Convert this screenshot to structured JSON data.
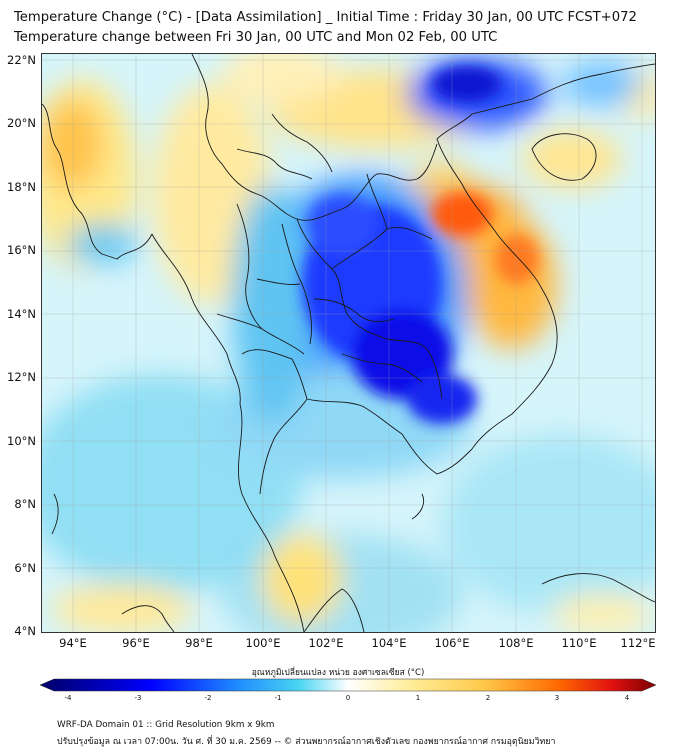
{
  "title_line1": "Temperature Change (°C) - [Data Assimilation] _ Initial Time : Friday 30 Jan, 00 UTC FCST+072",
  "title_line2": "Temperature change between Fri 30 Jan, 00 UTC and Mon 02 Feb, 00 UTC",
  "lat_labels": [
    "22°N",
    "20°N",
    "18°N",
    "16°N",
    "14°N",
    "12°N",
    "10°N",
    "8°N",
    "6°N",
    "4°N"
  ],
  "lon_labels": [
    "94°E",
    "96°E",
    "98°E",
    "100°E",
    "102°E",
    "104°E",
    "106°E",
    "108°E",
    "110°E",
    "112°E"
  ],
  "map_extent": {
    "lon_min": 93.0,
    "lon_max": 112.4,
    "lat_min": 4.0,
    "lat_max": 22.2
  },
  "gridlines": true,
  "colorbar": {
    "title": "อุณหภูมิเปลี่ยนแปลง หน่วย องศาเซลเซียส (°C)",
    "min": -4,
    "max": 4,
    "ticks": [
      "-4",
      "-3",
      "-2",
      "-1",
      "0",
      "1",
      "2",
      "3",
      "4"
    ],
    "colors": {
      "cold_end": "#000066",
      "cold_mid": "#0000ff",
      "cool": "#3ab8f0",
      "neutral": "#ffffff",
      "warm": "#ffe070",
      "hot": "#ff6a00",
      "hot_end": "#7a0000"
    }
  },
  "footer_line1": "WRF-DA Domain 01 :: Grid Resolution 9km x 9km",
  "footer_line2": "ปรับปรุงข้อมูล ณ เวลา 07:00น. วัน ศ. ที่ 30 ม.ค. 2569 -- © ส่วนพยากรณ์อากาศเชิงตัวเลข กองพยากรณ์อากาศ กรมอุตุนิยมวิทยา"
}
